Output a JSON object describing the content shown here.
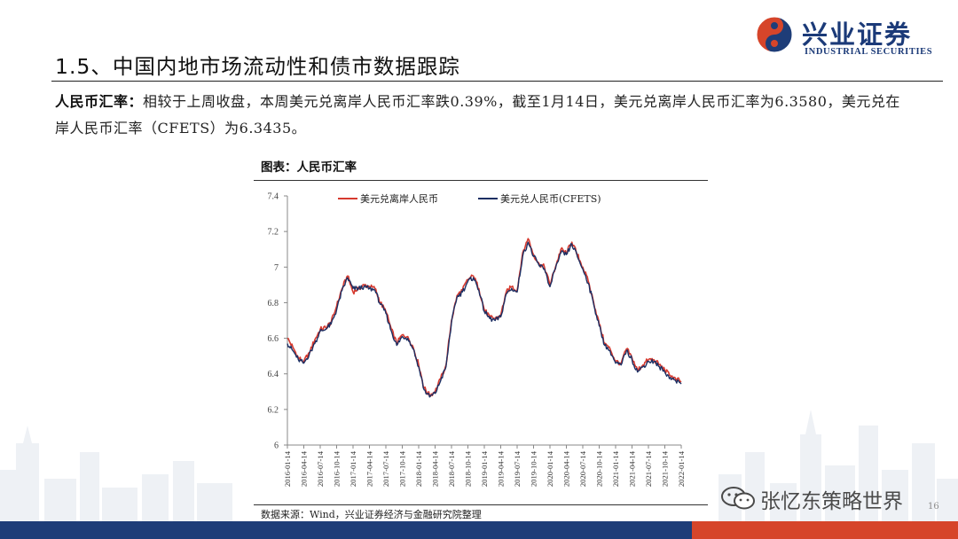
{
  "header": {
    "logo_cn": "兴业证券",
    "logo_en": "INDUSTRIAL SECURITIES",
    "title": "1.5、中国内地市场流动性和债市数据跟踪"
  },
  "paragraph": {
    "label": "人民币汇率：",
    "text": "相较于上周收盘，本周美元兑离岸人民币汇率跌0.39%，截至1月14日，美元兑离岸人民币汇率为6.3580，美元兑在岸人民币汇率（CFETS）为6.3435。"
  },
  "chart_title": "图表：人民币汇率",
  "source": "数据来源：Wind，兴业证券经济与金融研究院整理",
  "watermark": "张忆东策略世界",
  "page_number": "16",
  "colors": {
    "offshore": "#d63a2f",
    "onshore": "#1c2f63",
    "brand_blue": "#1e3d78",
    "brand_red": "#d6452a"
  },
  "chart_data": {
    "type": "line",
    "title": "",
    "xlabel": "",
    "ylabel": "",
    "ylim": [
      6,
      7.4
    ],
    "yticks": [
      "6",
      "6.2",
      "6.4",
      "6.6",
      "6.8",
      "7",
      "7.2",
      "7.4"
    ],
    "x_tick_labels": [
      "2016-01-14",
      "2016-04-14",
      "2016-07-14",
      "2016-10-14",
      "2017-01-14",
      "2017-04-14",
      "2017-07-14",
      "2017-10-14",
      "2018-01-14",
      "2018-04-14",
      "2018-07-14",
      "2018-10-14",
      "2019-01-14",
      "2019-04-14",
      "2019-07-14",
      "2019-10-14",
      "2020-01-14",
      "2020-04-14",
      "2020-07-14",
      "2020-10-14",
      "2021-01-14",
      "2021-04-14",
      "2021-07-14",
      "2021-10-14",
      "2022-01-14"
    ],
    "x": [
      "2016-01-14",
      "2016-02-14",
      "2016-03-14",
      "2016-04-14",
      "2016-05-14",
      "2016-06-14",
      "2016-07-14",
      "2016-08-14",
      "2016-09-14",
      "2016-10-14",
      "2016-11-14",
      "2016-12-14",
      "2017-01-14",
      "2017-02-14",
      "2017-03-14",
      "2017-04-14",
      "2017-05-14",
      "2017-06-14",
      "2017-07-14",
      "2017-08-14",
      "2017-09-14",
      "2017-10-14",
      "2017-11-14",
      "2017-12-14",
      "2018-01-14",
      "2018-02-14",
      "2018-03-14",
      "2018-04-14",
      "2018-05-14",
      "2018-06-14",
      "2018-07-14",
      "2018-08-14",
      "2018-09-14",
      "2018-10-14",
      "2018-11-14",
      "2018-12-14",
      "2019-01-14",
      "2019-02-14",
      "2019-03-14",
      "2019-04-14",
      "2019-05-14",
      "2019-06-14",
      "2019-07-14",
      "2019-08-14",
      "2019-09-14",
      "2019-10-14",
      "2019-11-14",
      "2019-12-14",
      "2020-01-14",
      "2020-02-14",
      "2020-03-14",
      "2020-04-14",
      "2020-05-14",
      "2020-06-14",
      "2020-07-14",
      "2020-08-14",
      "2020-09-14",
      "2020-10-14",
      "2020-11-14",
      "2020-12-14",
      "2021-01-14",
      "2021-02-14",
      "2021-03-14",
      "2021-04-14",
      "2021-05-14",
      "2021-06-14",
      "2021-07-14",
      "2021-08-14",
      "2021-09-14",
      "2021-10-14",
      "2021-11-14",
      "2021-12-14",
      "2022-01-14"
    ],
    "series": [
      {
        "name": "美元兑离岸人民币",
        "color": "#d63a2f",
        "values": [
          6.6,
          6.55,
          6.49,
          6.47,
          6.52,
          6.59,
          6.65,
          6.66,
          6.69,
          6.78,
          6.88,
          6.95,
          6.86,
          6.88,
          6.9,
          6.89,
          6.88,
          6.8,
          6.75,
          6.65,
          6.57,
          6.62,
          6.61,
          6.55,
          6.45,
          6.32,
          6.28,
          6.3,
          6.37,
          6.45,
          6.7,
          6.84,
          6.87,
          6.93,
          6.95,
          6.88,
          6.76,
          6.72,
          6.71,
          6.73,
          6.86,
          6.89,
          6.87,
          7.08,
          7.16,
          7.07,
          7.02,
          7.0,
          6.9,
          7.0,
          7.1,
          7.08,
          7.14,
          7.07,
          7.0,
          6.92,
          6.8,
          6.68,
          6.57,
          6.54,
          6.47,
          6.46,
          6.54,
          6.49,
          6.42,
          6.45,
          6.48,
          6.48,
          6.45,
          6.42,
          6.39,
          6.37,
          6.358
        ]
      },
      {
        "name": "美元兑人民币(CFETS)",
        "color": "#1c2f63",
        "values": [
          6.57,
          6.53,
          6.48,
          6.46,
          6.51,
          6.57,
          6.64,
          6.65,
          6.68,
          6.76,
          6.87,
          6.94,
          6.88,
          6.88,
          6.89,
          6.88,
          6.87,
          6.79,
          6.74,
          6.64,
          6.56,
          6.61,
          6.6,
          6.54,
          6.44,
          6.31,
          6.27,
          6.29,
          6.36,
          6.44,
          6.69,
          6.83,
          6.86,
          6.92,
          6.94,
          6.87,
          6.75,
          6.71,
          6.7,
          6.72,
          6.85,
          6.88,
          6.86,
          7.06,
          7.14,
          7.06,
          7.01,
          6.99,
          6.89,
          6.99,
          7.08,
          7.07,
          7.13,
          7.06,
          6.99,
          6.91,
          6.79,
          6.67,
          6.56,
          6.53,
          6.46,
          6.45,
          6.53,
          6.48,
          6.41,
          6.44,
          6.47,
          6.47,
          6.44,
          6.41,
          6.38,
          6.36,
          6.3435
        ]
      }
    ],
    "legend": "top-left",
    "grid": false
  }
}
